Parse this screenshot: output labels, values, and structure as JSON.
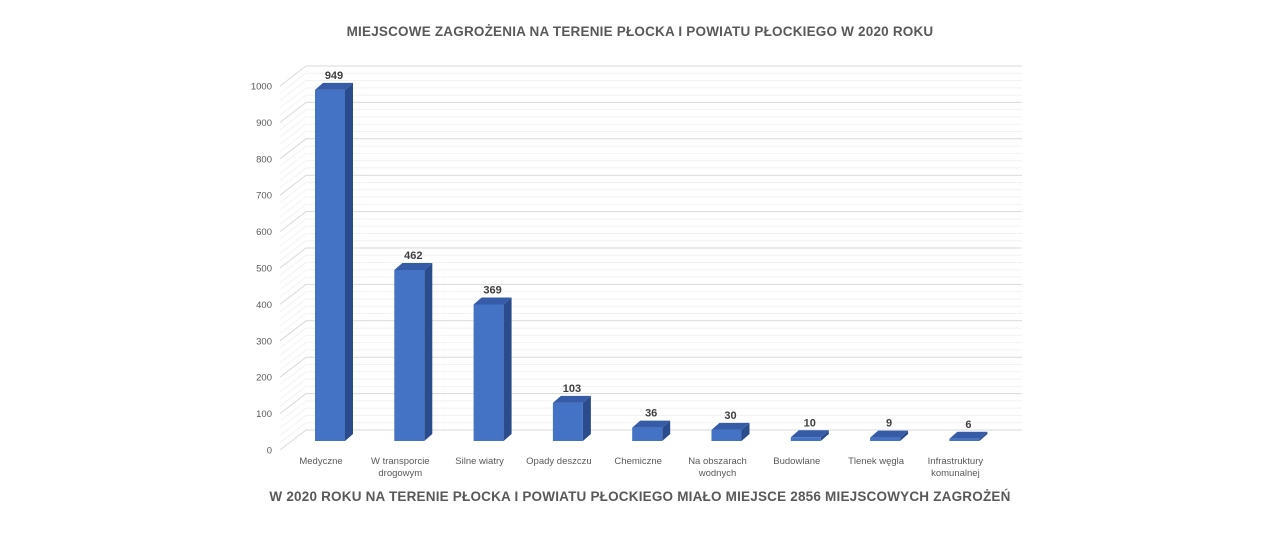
{
  "page": {
    "background": "#FFFFFF"
  },
  "header": {
    "title": "MIEJSCOWE ZAGROŻENIA NA TERENIE PŁOCKA I POWIATU PŁOCKIEGO W 2020 ROKU"
  },
  "footer": {
    "caption": "W 2020 ROKU NA TERENIE PŁOCKA I POWIATU PŁOCKIEGO MIAŁO MIEJSCE 2856 MIEJSCOWYCH ZAGROŻEŃ"
  },
  "chart_data": {
    "type": "bar",
    "variant": "3d-clustered-column",
    "title": "MIEJSCOWE ZAGROŻENIA NA TERENIE PŁOCKA I POWIATU PŁOCKIEGO W 2020 ROKU",
    "subtitle": "W 2020 ROKU NA TERENIE PŁOCKA I POWIATU PŁOCKIEGO MIAŁO MIEJSCE 2856 MIEJSCOWYCH ZAGROŻEŃ",
    "categories": [
      "Medyczne",
      "W transporcie drogowym",
      "Silne wiatry",
      "Opady deszczu",
      "Chemiczne",
      "Na obszarach wodnych",
      "Budowlane",
      "Tlenek węgla",
      "Infrastruktury komunalnej"
    ],
    "values": [
      949,
      462,
      369,
      103,
      36,
      30,
      10,
      9,
      6
    ],
    "total": 2856,
    "xlabel": "",
    "ylabel": "",
    "ylim": [
      0,
      1000
    ],
    "y_major_step": 100,
    "y_minor_step": 20,
    "y_tick_labels": [
      "0",
      "100",
      "200",
      "300",
      "400",
      "500",
      "600",
      "700",
      "800",
      "900",
      "1000"
    ],
    "grid": true,
    "legend_position": "none",
    "data_labels": true,
    "colors": {
      "bar_front": "#4472C4",
      "bar_top": "#365CA8",
      "bar_side": "#2B4C8C",
      "grid_major": "#D9D9D9",
      "grid_minor": "#F2F2F2",
      "axis_text": "#595959",
      "title_text": "#595959",
      "data_label_text": "#3F3F3F",
      "background": "#FFFFFF"
    }
  }
}
